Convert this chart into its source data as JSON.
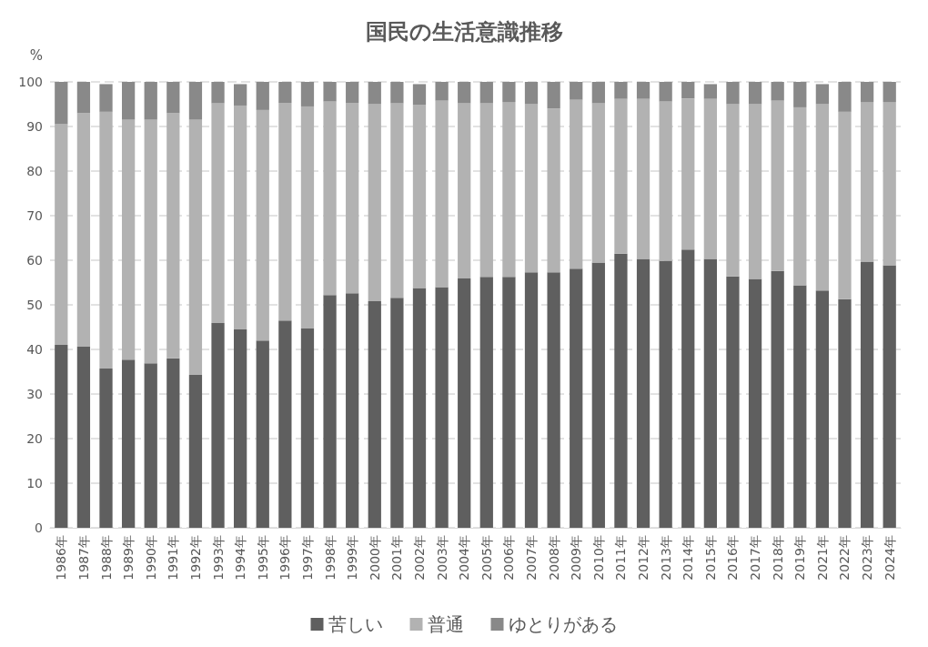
{
  "chart_data": {
    "type": "bar",
    "title": "国民の生活意識推移",
    "ylabel": "%",
    "stacked": true,
    "categories": [
      "1986年",
      "1987年",
      "1988年",
      "1989年",
      "1990年",
      "1991年",
      "1992年",
      "1993年",
      "1994年",
      "1995年",
      "1996年",
      "1997年",
      "1998年",
      "1999年",
      "2000年",
      "2001年",
      "2002年",
      "2003年",
      "2004年",
      "2005年",
      "2006年",
      "2007年",
      "2008年",
      "2009年",
      "2010年",
      "2011年",
      "2012年",
      "2013年",
      "2014年",
      "2015年",
      "2016年",
      "2017年",
      "2018年",
      "2019年",
      "2021年",
      "2022年",
      "2023年",
      "2024年"
    ],
    "series": [
      {
        "name": "苦しい",
        "color": "#5f5f5f",
        "values": [
          41,
          40.6,
          35.7,
          37.7,
          36.9,
          38,
          34.3,
          45.9,
          44.5,
          42,
          46.5,
          44.7,
          52.2,
          52.6,
          50.8,
          51.6,
          53.8,
          54,
          55.9,
          56.3,
          56.3,
          57.3,
          57.3,
          58.1,
          59.5,
          61.5,
          60.3,
          59.9,
          62.4,
          60.3,
          56.4,
          55.8,
          57.6,
          54.4,
          53.2,
          51.3,
          59.7,
          58.9
        ]
      },
      {
        "name": "普通",
        "color": "#b2b2b2",
        "values": [
          49.5,
          52.4,
          57.6,
          53.8,
          54.6,
          55,
          57.2,
          49.3,
          50.2,
          51.7,
          48.8,
          49.8,
          43.4,
          42.7,
          44.2,
          43.6,
          41.1,
          41.8,
          39.3,
          38.9,
          39.2,
          37.7,
          36.7,
          37.9,
          35.7,
          34.7,
          35.9,
          35.7,
          33.9,
          35.9,
          38.6,
          39.2,
          38.2,
          39.9,
          41.8,
          42,
          35.8,
          36.6
        ]
      },
      {
        "name": "ゆとりがある",
        "color": "#898989",
        "values": [
          9.5,
          7,
          6.2,
          8.5,
          8.5,
          7,
          8.5,
          4.8,
          4.8,
          6.3,
          4.7,
          5.5,
          4.4,
          4.7,
          5,
          4.8,
          4.6,
          4.2,
          4.8,
          4.8,
          4.5,
          5,
          6,
          4,
          4.8,
          3.8,
          3.8,
          4.4,
          3.7,
          3.3,
          5,
          5,
          4.2,
          5.7,
          4.5,
          6.7,
          4.5,
          4.5
        ]
      }
    ],
    "ylim": [
      0,
      100
    ],
    "yticks": [
      0,
      10,
      20,
      30,
      40,
      50,
      60,
      70,
      80,
      90,
      100
    ],
    "grid": "y",
    "legend": "bottom"
  }
}
